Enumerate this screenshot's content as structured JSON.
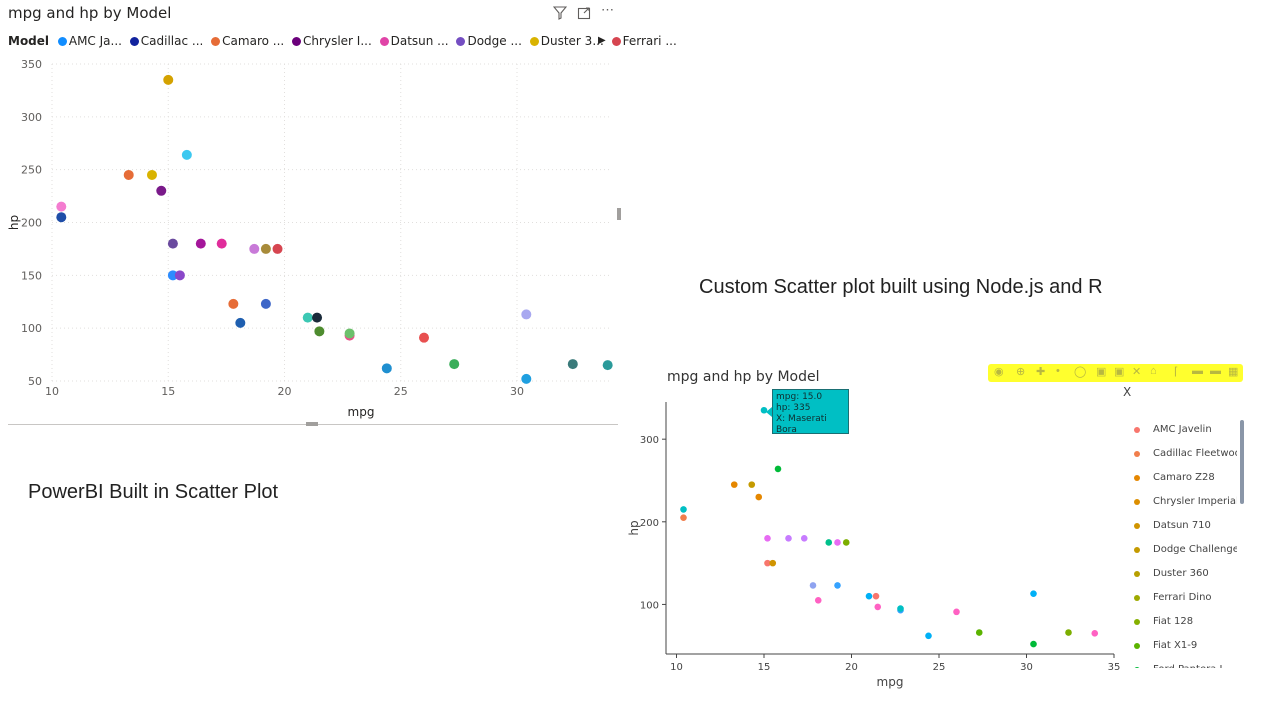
{
  "powerbi": {
    "title": "mpg and hp by Model",
    "legend_title": "Model",
    "legend_items": [
      {
        "label": "AMC Ja...",
        "color": "#118dff"
      },
      {
        "label": "Cadillac ...",
        "color": "#12239e"
      },
      {
        "label": "Camaro ...",
        "color": "#e66c37"
      },
      {
        "label": "Chrysler I...",
        "color": "#6b007b"
      },
      {
        "label": "Datsun ...",
        "color": "#e044a7"
      },
      {
        "label": "Dodge ...",
        "color": "#744ec2"
      },
      {
        "label": "Duster 3...",
        "color": "#d9b300"
      },
      {
        "label": "Ferrari ...",
        "color": "#d64550"
      }
    ],
    "icons": [
      "filter-icon",
      "focus-mode-icon",
      "more-options-icon"
    ],
    "caption": "PowerBI Built in Scatter Plot"
  },
  "custom": {
    "caption": "Custom Scatter plot built using Node.js and R",
    "title": "mpg and hp by Model",
    "legend_title": "X",
    "legend_items": [
      {
        "label": "AMC Javelin",
        "color": "#f8766d"
      },
      {
        "label": "Cadillac Fleetwood",
        "color": "#f17e4c"
      },
      {
        "label": "Camaro Z28",
        "color": "#e58700"
      },
      {
        "label": "Chrysler Imperial",
        "color": "#dc8e00"
      },
      {
        "label": "Datsun 710",
        "color": "#d09400"
      },
      {
        "label": "Dodge Challenger",
        "color": "#c49a00"
      },
      {
        "label": "Duster 360",
        "color": "#b79f00"
      },
      {
        "label": "Ferrari Dino",
        "color": "#9eaa00"
      },
      {
        "label": "Fiat 128",
        "color": "#85b000"
      },
      {
        "label": "Fiat X1-9",
        "color": "#5bb300"
      },
      {
        "label": "Ford Pantera L",
        "color": "#00ba38"
      }
    ],
    "tooltip": {
      "line1": "mpg: 15.0",
      "line2": "hp: 335",
      "line3": "X: Maserati Bora"
    },
    "modebar_icons": [
      "camera-icon",
      "zoom-icon",
      "pan-icon",
      "lasso-icon",
      "box-select-icon",
      "zoom-in-icon",
      "zoom-out-icon",
      "autoscale-icon",
      "reset-axes-icon",
      "spike-icon",
      "hover-icon",
      "plotly-logo-icon"
    ]
  },
  "chart_data": [
    {
      "type": "scatter",
      "title": "mpg and hp by Model",
      "xlabel": "mpg",
      "ylabel": "hp",
      "xlim": [
        10,
        34
      ],
      "ylim": [
        50,
        350
      ],
      "xticks": [
        10,
        15,
        20,
        25,
        30
      ],
      "yticks": [
        50,
        100,
        150,
        200,
        250,
        300,
        350
      ],
      "grid": true,
      "legend": "top",
      "points": [
        {
          "x": 10.4,
          "y": 215,
          "color": "#f47cd0"
        },
        {
          "x": 10.4,
          "y": 205,
          "color": "#1f4ea8"
        },
        {
          "x": 13.3,
          "y": 245,
          "color": "#e66c37"
        },
        {
          "x": 14.3,
          "y": 245,
          "color": "#d9b300"
        },
        {
          "x": 14.7,
          "y": 230,
          "color": "#7a1a8a"
        },
        {
          "x": 15.0,
          "y": 335,
          "color": "#d4a200"
        },
        {
          "x": 15.2,
          "y": 180,
          "color": "#6a4a9e"
        },
        {
          "x": 15.2,
          "y": 150,
          "color": "#2d8cff"
        },
        {
          "x": 15.5,
          "y": 150,
          "color": "#8a47c9"
        },
        {
          "x": 15.8,
          "y": 264,
          "color": "#3cc8f0"
        },
        {
          "x": 16.4,
          "y": 180,
          "color": "#a4169a"
        },
        {
          "x": 17.3,
          "y": 180,
          "color": "#e02d9b"
        },
        {
          "x": 17.8,
          "y": 123,
          "color": "#e66c37"
        },
        {
          "x": 18.1,
          "y": 105,
          "color": "#1f5fb0"
        },
        {
          "x": 18.7,
          "y": 175,
          "color": "#c87ad8"
        },
        {
          "x": 19.2,
          "y": 175,
          "color": "#a88b3a"
        },
        {
          "x": 19.2,
          "y": 123,
          "color": "#3d66c8"
        },
        {
          "x": 19.7,
          "y": 175,
          "color": "#d64550"
        },
        {
          "x": 21.0,
          "y": 110,
          "color": "#3cc8b4"
        },
        {
          "x": 21.4,
          "y": 110,
          "color": "#1a2a3a"
        },
        {
          "x": 21.5,
          "y": 97,
          "color": "#4e8c2f"
        },
        {
          "x": 22.8,
          "y": 93,
          "color": "#e8508a"
        },
        {
          "x": 22.8,
          "y": 95,
          "color": "#6cc06c"
        },
        {
          "x": 24.4,
          "y": 62,
          "color": "#1f8fd0"
        },
        {
          "x": 26.0,
          "y": 91,
          "color": "#e85050"
        },
        {
          "x": 27.3,
          "y": 66,
          "color": "#3aae5a"
        },
        {
          "x": 30.4,
          "y": 113,
          "color": "#a8a8f0"
        },
        {
          "x": 30.4,
          "y": 52,
          "color": "#1f9fe0"
        },
        {
          "x": 32.4,
          "y": 66,
          "color": "#3a7a7a"
        },
        {
          "x": 33.9,
          "y": 65,
          "color": "#2a9a9a"
        }
      ]
    },
    {
      "type": "scatter",
      "title": "mpg and hp by Model",
      "xlabel": "mpg",
      "ylabel": "hp",
      "xlim": [
        9.4,
        35
      ],
      "ylim": [
        40,
        345
      ],
      "xticks": [
        10,
        15,
        20,
        25,
        30,
        35
      ],
      "yticks": [
        100,
        200,
        300
      ],
      "grid": false,
      "legend": "right",
      "points": [
        {
          "x": 10.4,
          "y": 215,
          "color": "#00bfc4"
        },
        {
          "x": 10.4,
          "y": 205,
          "color": "#f17e4c"
        },
        {
          "x": 13.3,
          "y": 245,
          "color": "#e58700"
        },
        {
          "x": 14.3,
          "y": 245,
          "color": "#c49a00"
        },
        {
          "x": 14.7,
          "y": 230,
          "color": "#e58700"
        },
        {
          "x": 15.0,
          "y": 335,
          "color": "#00bfc4"
        },
        {
          "x": 15.2,
          "y": 180,
          "color": "#e76bf3"
        },
        {
          "x": 15.2,
          "y": 150,
          "color": "#f8766d"
        },
        {
          "x": 15.5,
          "y": 150,
          "color": "#d09400"
        },
        {
          "x": 15.8,
          "y": 264,
          "color": "#00ba38"
        },
        {
          "x": 16.4,
          "y": 180,
          "color": "#c77cff"
        },
        {
          "x": 17.3,
          "y": 180,
          "color": "#c77cff"
        },
        {
          "x": 17.8,
          "y": 123,
          "color": "#8fa3f0"
        },
        {
          "x": 18.1,
          "y": 105,
          "color": "#ff61c3"
        },
        {
          "x": 18.7,
          "y": 175,
          "color": "#00c08b"
        },
        {
          "x": 19.2,
          "y": 175,
          "color": "#e76bf3"
        },
        {
          "x": 19.2,
          "y": 123,
          "color": "#35a2ff"
        },
        {
          "x": 19.7,
          "y": 175,
          "color": "#7cae00"
        },
        {
          "x": 21.0,
          "y": 110,
          "color": "#00b0f6"
        },
        {
          "x": 21.4,
          "y": 110,
          "color": "#f8766d"
        },
        {
          "x": 21.5,
          "y": 97,
          "color": "#ff61c3"
        },
        {
          "x": 22.8,
          "y": 93,
          "color": "#35a2ff"
        },
        {
          "x": 22.8,
          "y": 95,
          "color": "#00bfc4"
        },
        {
          "x": 24.4,
          "y": 62,
          "color": "#00b0f6"
        },
        {
          "x": 26.0,
          "y": 91,
          "color": "#ff61c3"
        },
        {
          "x": 27.3,
          "y": 66,
          "color": "#5bb300"
        },
        {
          "x": 30.4,
          "y": 113,
          "color": "#00b0f6"
        },
        {
          "x": 30.4,
          "y": 52,
          "color": "#00ba38"
        },
        {
          "x": 32.4,
          "y": 66,
          "color": "#7cae00"
        },
        {
          "x": 33.9,
          "y": 65,
          "color": "#ff61c3"
        }
      ]
    }
  ]
}
